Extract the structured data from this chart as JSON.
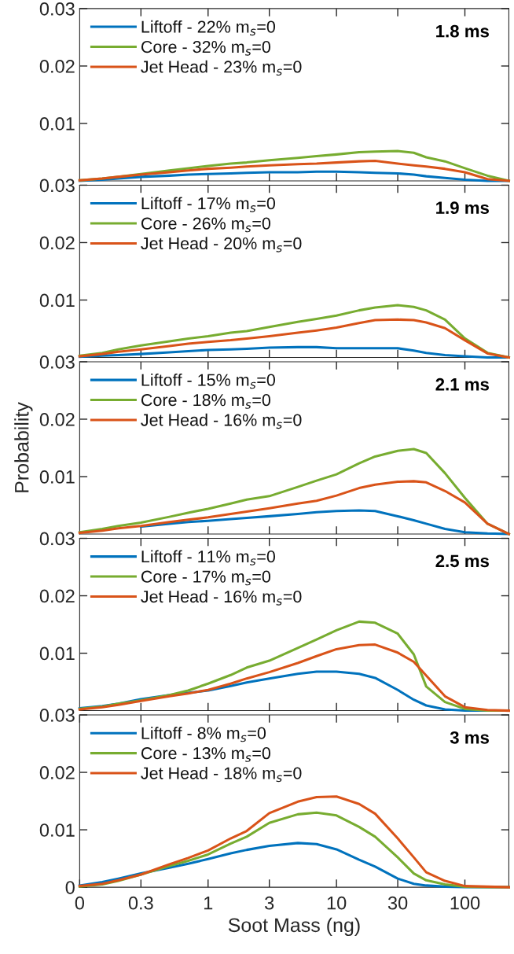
{
  "chart_data": [
    {
      "type": "line",
      "x": [
        0.1,
        0.15,
        0.2,
        0.3,
        0.5,
        0.7,
        1,
        1.5,
        2,
        3,
        5,
        7,
        10,
        15,
        20,
        30,
        40,
        50,
        70,
        100,
        150,
        220
      ],
      "xlim": [
        0.1,
        220
      ],
      "xticks": [
        0.3,
        1,
        3,
        10,
        30,
        100
      ],
      "log": "x",
      "ylim": [
        0,
        0.03
      ],
      "yticks": [
        0.01,
        0.02,
        0.03
      ],
      "tick_labels": "y",
      "legend": "top left",
      "grid": false,
      "annotations": [
        "1.8 ms"
      ],
      "series": [
        {
          "name": "Liftoff - 22% m$_{s}$=0",
          "color": "#0072bd",
          "values": [
            0,
            0.0002,
            0.0004,
            0.0007,
            0.0009,
            0.0011,
            0.0012,
            0.0013,
            0.0014,
            0.0015,
            0.0015,
            0.0016,
            0.0016,
            0.0015,
            0.0014,
            0.0013,
            0.0011,
            0.0008,
            0.0005,
            0.0002,
            0,
            0
          ]
        },
        {
          "name": "Core - 32% m$_{s}$=0",
          "color": "#77ac30",
          "values": [
            0.0001,
            0.0004,
            0.0007,
            0.0012,
            0.0018,
            0.0022,
            0.0026,
            0.003,
            0.0032,
            0.0036,
            0.004,
            0.0043,
            0.0046,
            0.005,
            0.0051,
            0.0052,
            0.0049,
            0.0041,
            0.0034,
            0.0022,
            0.0009,
            0
          ]
        },
        {
          "name": "Jet Head - 23% m$_{s}$=0",
          "color": "#d95319",
          "values": [
            0.0001,
            0.0004,
            0.0007,
            0.0011,
            0.0015,
            0.0018,
            0.0021,
            0.0023,
            0.0025,
            0.0027,
            0.0029,
            0.003,
            0.0032,
            0.0034,
            0.0035,
            0.003,
            0.0027,
            0.0025,
            0.0021,
            0.0015,
            0.0003,
            0
          ]
        }
      ]
    },
    {
      "type": "line",
      "x": [
        0.1,
        0.15,
        0.2,
        0.3,
        0.5,
        0.7,
        1,
        1.5,
        2,
        3,
        5,
        7,
        10,
        15,
        20,
        30,
        40,
        50,
        70,
        100,
        150,
        220
      ],
      "xlim": [
        0.1,
        220
      ],
      "xticks": [
        0.3,
        1,
        3,
        10,
        30,
        100
      ],
      "log": "x",
      "ylim": [
        0,
        0.03
      ],
      "yticks": [
        0.01,
        0.02,
        0.03
      ],
      "tick_labels": "y",
      "legend": "top left",
      "grid": false,
      "annotations": [
        "1.9 ms"
      ],
      "series": [
        {
          "name": "Liftoff - 17% m$_{s}$=0",
          "color": "#0072bd",
          "values": [
            0.0001,
            0.0003,
            0.0004,
            0.0006,
            0.0009,
            0.0011,
            0.0013,
            0.0014,
            0.0015,
            0.0017,
            0.0018,
            0.0018,
            0.0016,
            0.0016,
            0.0016,
            0.0016,
            0.0012,
            0.0008,
            0.0004,
            0.0002,
            0,
            0
          ]
        },
        {
          "name": "Core - 26% m$_{s}$=0",
          "color": "#77ac30",
          "values": [
            0.0003,
            0.0008,
            0.0014,
            0.0021,
            0.0028,
            0.0033,
            0.0037,
            0.0043,
            0.0046,
            0.0053,
            0.0062,
            0.0067,
            0.0073,
            0.0082,
            0.0087,
            0.0091,
            0.0088,
            0.0082,
            0.0066,
            0.0033,
            0.0008,
            0
          ]
        },
        {
          "name": "Jet Head - 20% m$_{s}$=0",
          "color": "#d95319",
          "values": [
            0.0002,
            0.0006,
            0.001,
            0.0014,
            0.002,
            0.0024,
            0.0027,
            0.003,
            0.0033,
            0.0037,
            0.0043,
            0.0047,
            0.0052,
            0.006,
            0.0065,
            0.0066,
            0.0065,
            0.0061,
            0.0051,
            0.003,
            0.0007,
            0
          ]
        }
      ]
    },
    {
      "type": "line",
      "x": [
        0.1,
        0.15,
        0.2,
        0.3,
        0.5,
        0.7,
        1,
        1.5,
        2,
        3,
        5,
        7,
        10,
        15,
        20,
        30,
        40,
        50,
        70,
        100,
        150,
        220
      ],
      "xlim": [
        0.1,
        220
      ],
      "xticks": [
        0.3,
        1,
        3,
        10,
        30,
        100
      ],
      "log": "x",
      "ylim": [
        0,
        0.03
      ],
      "yticks": [
        0.01,
        0.02,
        0.03
      ],
      "tick_labels": "y",
      "legend": "top left",
      "grid": false,
      "ylabel": "Probability",
      "annotations": [
        "2.1 ms"
      ],
      "series": [
        {
          "name": "Liftoff - 15% m$_{s}$=0",
          "color": "#0072bd",
          "values": [
            null,
            null,
            null,
            0.0013,
            0.0018,
            0.0021,
            0.0023,
            0.0026,
            0.0028,
            0.0031,
            0.0035,
            0.0038,
            0.004,
            0.0041,
            0.004,
            0.0031,
            0.0024,
            0.0018,
            0.0009,
            0.0003,
            0.0001,
            0
          ]
        },
        {
          "name": "Core - 18% m$_{s}$=0",
          "color": "#77ac30",
          "values": [
            0.0003,
            0.0009,
            0.0014,
            0.002,
            0.003,
            0.0037,
            0.0044,
            0.0053,
            0.006,
            0.0066,
            0.0082,
            0.0093,
            0.0104,
            0.0123,
            0.0135,
            0.0145,
            0.0148,
            0.0141,
            0.0106,
            0.0063,
            0.0018,
            0
          ]
        },
        {
          "name": "Jet Head - 16% m$_{s}$=0",
          "color": "#d95319",
          "values": [
            0.0002,
            0.0006,
            0.001,
            0.0014,
            0.0021,
            0.0025,
            0.0029,
            0.0035,
            0.0039,
            0.0045,
            0.0053,
            0.0058,
            0.0067,
            0.008,
            0.0086,
            0.0091,
            0.0092,
            0.009,
            0.0075,
            0.0055,
            0.0018,
            0
          ]
        }
      ]
    },
    {
      "type": "line",
      "x": [
        0.1,
        0.15,
        0.2,
        0.3,
        0.5,
        0.7,
        1,
        1.5,
        2,
        3,
        5,
        7,
        10,
        15,
        20,
        30,
        40,
        50,
        70,
        100,
        150,
        220
      ],
      "xlim": [
        0.1,
        220
      ],
      "xticks": [
        0.3,
        1,
        3,
        10,
        30,
        100
      ],
      "log": "x",
      "ylim": [
        0,
        0.03
      ],
      "yticks": [
        0.01,
        0.02,
        0.03
      ],
      "tick_labels": "y",
      "legend": "top left",
      "grid": false,
      "annotations": [
        "2.5 ms"
      ],
      "series": [
        {
          "name": "Liftoff - 11% m$_{s}$=0",
          "color": "#0072bd",
          "values": [
            0.0004,
            0.0008,
            0.0012,
            0.002,
            0.0027,
            0.0031,
            0.0035,
            0.0043,
            0.0049,
            0.0056,
            0.0064,
            0.0068,
            0.0068,
            0.0064,
            0.0057,
            0.0036,
            0.0019,
            0.0009,
            0.0002,
            0,
            0,
            0
          ]
        },
        {
          "name": "Core - 17% m$_{s}$=0",
          "color": "#77ac30",
          "values": [
            0.0003,
            0.0007,
            0.0012,
            0.0018,
            0.0027,
            0.0035,
            0.0047,
            0.0062,
            0.0075,
            0.0087,
            0.0109,
            0.0124,
            0.014,
            0.0155,
            0.0153,
            0.0134,
            0.0098,
            0.0042,
            0.0015,
            0.0003,
            0,
            0
          ]
        },
        {
          "name": "Jet Head - 16% m$_{s}$=0",
          "color": "#d95319",
          "values": [
            0.0002,
            0.0006,
            0.001,
            0.0017,
            0.0025,
            0.003,
            0.0036,
            0.0047,
            0.0056,
            0.0067,
            0.0083,
            0.0095,
            0.0107,
            0.0114,
            0.0115,
            0.0101,
            0.0085,
            0.0061,
            0.0025,
            0.0006,
            0.0001,
            0
          ]
        }
      ]
    },
    {
      "type": "line",
      "x": [
        0.1,
        0.15,
        0.2,
        0.3,
        0.5,
        0.7,
        1,
        1.5,
        2,
        3,
        5,
        7,
        10,
        15,
        20,
        30,
        40,
        50,
        70,
        100,
        150,
        220
      ],
      "xlim": [
        0.1,
        220
      ],
      "xticks": [
        {
          "value": 0.1,
          "label": "0"
        },
        0.3,
        1,
        3,
        10,
        30,
        100
      ],
      "log": "x",
      "ylim": [
        0,
        0.03
      ],
      "yticks": [
        0,
        0.01,
        0.02,
        0.03
      ],
      "legend": "top left",
      "grid": false,
      "xlabel": "Soot Mass (ng)",
      "annotations": [
        "3 ms"
      ],
      "series": [
        {
          "name": "Liftoff - 8% m$_{s}$=0",
          "color": "#0072bd",
          "values": [
            0.0003,
            0.0009,
            0.0015,
            0.0024,
            0.0034,
            0.0041,
            0.0049,
            0.0059,
            0.0065,
            0.0072,
            0.0077,
            0.0075,
            0.0066,
            0.0048,
            0.0036,
            0.0015,
            0.0006,
            0.0003,
            0.0001,
            0,
            0,
            0
          ]
        },
        {
          "name": "Core - 13% m$_{s}$=0",
          "color": "#77ac30",
          "values": [
            0.0001,
            0.0005,
            0.0011,
            0.0022,
            0.0037,
            0.0046,
            0.0057,
            0.0076,
            0.0088,
            0.0112,
            0.0127,
            0.013,
            0.0125,
            0.0105,
            0.0088,
            0.0052,
            0.0024,
            0.0012,
            0.0005,
            0.0001,
            0,
            0
          ]
        },
        {
          "name": "Jet Head - 18% m$_{s}$=0",
          "color": "#d95319",
          "values": [
            0.0002,
            0.0006,
            0.0012,
            0.0022,
            0.004,
            0.0051,
            0.0064,
            0.0085,
            0.0098,
            0.0129,
            0.0149,
            0.0157,
            0.0158,
            0.0145,
            0.0128,
            0.0085,
            0.0052,
            0.0026,
            0.0011,
            0.0002,
            0.0001,
            0
          ]
        }
      ]
    }
  ]
}
